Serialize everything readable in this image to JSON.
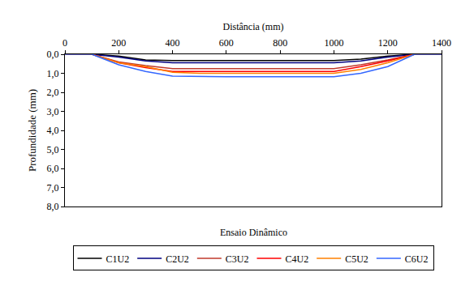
{
  "chart_data": {
    "type": "line",
    "title": "Ensaio Dinâmico",
    "xlabel": "Distância (mm)",
    "ylabel": "Profundidade (mm)",
    "x": [
      0,
      100,
      200,
      300,
      400,
      500,
      600,
      700,
      800,
      900,
      1000,
      1100,
      1200,
      1300,
      1400
    ],
    "series": [
      {
        "name": "C1U2",
        "color": "#000000",
        "values": [
          0,
          0,
          0.1,
          0.3,
          0.33,
          0.33,
          0.33,
          0.33,
          0.33,
          0.33,
          0.33,
          0.25,
          0.1,
          0,
          0
        ]
      },
      {
        "name": "C2U2",
        "color": "#000080",
        "values": [
          0,
          0,
          0.15,
          0.35,
          0.45,
          0.45,
          0.45,
          0.45,
          0.45,
          0.45,
          0.45,
          0.35,
          0.15,
          0,
          0
        ]
      },
      {
        "name": "C3U2",
        "color": "#c0392b",
        "values": [
          0,
          0,
          0.4,
          0.6,
          0.75,
          0.75,
          0.75,
          0.75,
          0.75,
          0.75,
          0.75,
          0.55,
          0.3,
          0,
          0
        ]
      },
      {
        "name": "C4U2",
        "color": "#ff0000",
        "values": [
          0,
          0,
          0.45,
          0.7,
          0.9,
          0.9,
          0.9,
          0.9,
          0.9,
          0.9,
          0.9,
          0.65,
          0.35,
          0,
          0
        ]
      },
      {
        "name": "C5U2",
        "color": "#ff8000",
        "values": [
          0,
          0,
          0.45,
          0.65,
          0.95,
          1.0,
          1.0,
          1.0,
          1.0,
          1.0,
          1.0,
          0.8,
          0.45,
          0,
          0
        ]
      },
      {
        "name": "C6U2",
        "color": "#3366ff",
        "values": [
          0,
          0,
          0.55,
          0.9,
          1.15,
          1.18,
          1.18,
          1.18,
          1.18,
          1.18,
          1.18,
          1.0,
          0.65,
          0,
          0
        ]
      }
    ],
    "xlim": [
      0,
      1400
    ],
    "xticks": [
      0,
      200,
      400,
      600,
      800,
      1000,
      1200,
      1400
    ],
    "ylim": [
      8,
      0
    ],
    "yticks": [
      {
        "value": 0,
        "label": "0,0"
      },
      {
        "value": 1,
        "label": "1,0"
      },
      {
        "value": 2,
        "label": "2,0"
      },
      {
        "value": 3,
        "label": "3,0"
      },
      {
        "value": 4,
        "label": "4,0"
      },
      {
        "value": 5,
        "label": "5,0"
      },
      {
        "value": 6,
        "label": "6,0"
      },
      {
        "value": 7,
        "label": "7,0"
      },
      {
        "value": 8,
        "label": "8,0"
      }
    ],
    "grid": false,
    "legend": "bottom"
  }
}
